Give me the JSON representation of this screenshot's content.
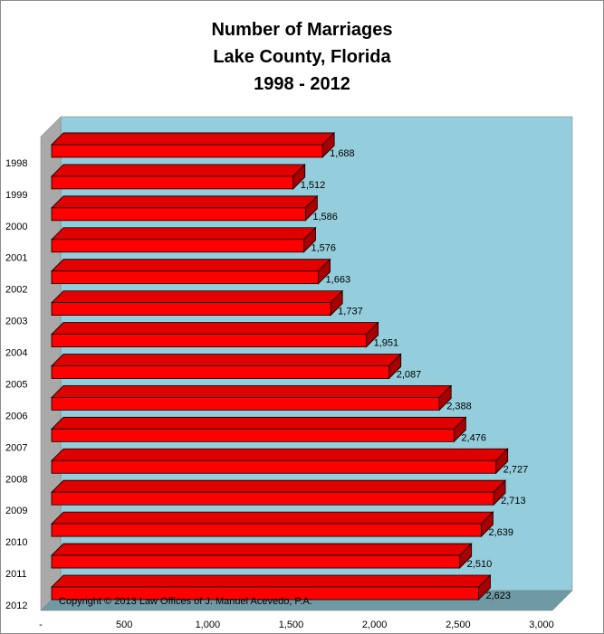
{
  "chart_data": {
    "type": "bar",
    "orientation": "horizontal",
    "title_lines": [
      "Number of Marriages",
      "Lake County, Florida",
      "1998 - 2012"
    ],
    "categories": [
      "1998",
      "1999",
      "2000",
      "2001",
      "2002",
      "2003",
      "2004",
      "2005",
      "2006",
      "2007",
      "2008",
      "2009",
      "2010",
      "2011",
      "2012"
    ],
    "values": [
      1688,
      1512,
      1586,
      1576,
      1663,
      1737,
      1951,
      2087,
      2388,
      2476,
      2727,
      2713,
      2639,
      2510,
      2623
    ],
    "data_labels": [
      "1,688",
      "1,512",
      "1,586",
      "1,576",
      "1,663",
      "1,737",
      "1,951",
      "2,087",
      "2,388",
      "2,476",
      "2,727",
      "2,713",
      "2,639",
      "2,510",
      "2,623"
    ],
    "xlim": [
      0,
      3000
    ],
    "x_ticks": [
      0,
      500,
      1000,
      1500,
      2000,
      2500,
      3000
    ],
    "x_tick_labels": [
      "-",
      "500",
      "1,000",
      "1,500",
      "2,000",
      "2,500",
      "3,000"
    ],
    "xlabel": "",
    "ylabel": "",
    "grid": false,
    "legend": "none",
    "style": "3d",
    "annotation": "Copyright © 2013 Law Offices of J. Manuel Acevedo, P.A.",
    "colors": {
      "bar_front": "#ff0000",
      "bar_top": "#e00000",
      "bar_side": "#a80000",
      "bar_edge": "#000000",
      "back_wall": "#94cddb",
      "side_wall": "#a9a9a9",
      "floor": "#6f99a3"
    }
  }
}
